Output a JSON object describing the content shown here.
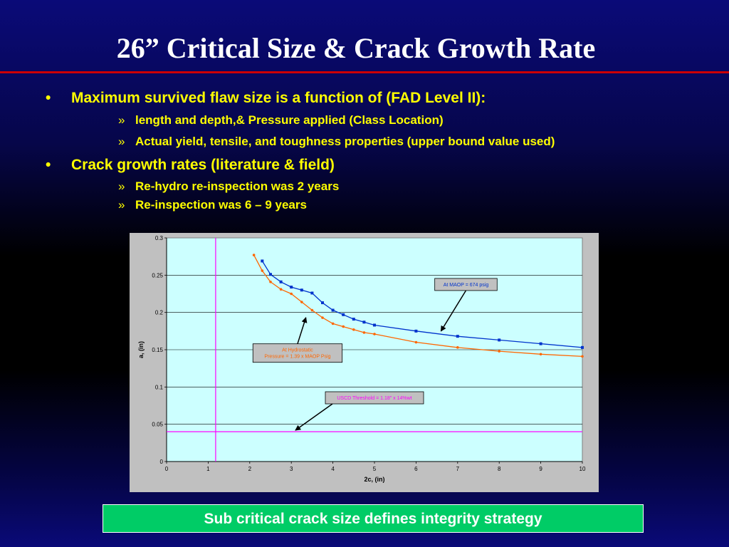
{
  "title": "26” Critical Size & Crack Growth Rate",
  "bullets": [
    {
      "text": "Maximum survived flaw size is a function of  (FAD Level II):",
      "sub": [
        "length and depth,& Pressure applied (Class Location)",
        "Actual yield, tensile, and toughness properties (upper bound value used)"
      ]
    },
    {
      "text": "Crack growth rates (literature & field)",
      "sub": [
        "Re-hydro re-inspection was 2 years",
        "Re-inspection was 6 – 9 years"
      ]
    }
  ],
  "bullet_marker": "•",
  "sub_marker": "»",
  "banner": "Sub critical crack size defines integrity strategy",
  "colors": {
    "title": "#ffffff",
    "bullets": "#ffff00",
    "title_rule": "#cc0000",
    "banner_bg": "#00cc66",
    "plot_bg": "#ccffff",
    "maop_series": "#0033cc",
    "hydro_series": "#ff6600",
    "threshold_line": "#ff00ff"
  },
  "chart_data": {
    "type": "line",
    "xlabel": "2c, (in)",
    "ylabel": "a, (in)",
    "xlim": [
      0,
      10
    ],
    "ylim": [
      0,
      0.3
    ],
    "x_ticks": [
      "0",
      "1",
      "2",
      "3",
      "4",
      "5",
      "6",
      "7",
      "8",
      "9",
      "10"
    ],
    "y_ticks": [
      "0",
      "0.05",
      "0.1",
      "0.15",
      "0.2",
      "0.25",
      "0.3"
    ],
    "grid": true,
    "series": [
      {
        "key": "maop",
        "color": "#0033cc",
        "marker": "square",
        "points": [
          [
            2.3,
            0.269
          ],
          [
            2.5,
            0.251
          ],
          [
            2.75,
            0.241
          ],
          [
            3.0,
            0.234
          ],
          [
            3.25,
            0.23
          ],
          [
            3.5,
            0.226
          ],
          [
            3.75,
            0.213
          ],
          [
            4.0,
            0.203
          ],
          [
            4.25,
            0.197
          ],
          [
            4.5,
            0.191
          ],
          [
            4.75,
            0.187
          ],
          [
            5.0,
            0.183
          ],
          [
            6.0,
            0.175
          ],
          [
            7.0,
            0.168
          ],
          [
            8.0,
            0.163
          ],
          [
            9.0,
            0.158
          ],
          [
            10.0,
            0.153
          ]
        ]
      },
      {
        "key": "hydro",
        "color": "#ff6600",
        "marker": "dot",
        "points": [
          [
            2.1,
            0.277
          ],
          [
            2.3,
            0.256
          ],
          [
            2.5,
            0.241
          ],
          [
            2.75,
            0.231
          ],
          [
            3.0,
            0.225
          ],
          [
            3.25,
            0.214
          ],
          [
            3.5,
            0.203
          ],
          [
            3.75,
            0.193
          ],
          [
            4.0,
            0.185
          ],
          [
            4.25,
            0.181
          ],
          [
            4.5,
            0.177
          ],
          [
            4.75,
            0.173
          ],
          [
            5.0,
            0.171
          ],
          [
            6.0,
            0.16
          ],
          [
            7.0,
            0.153
          ],
          [
            8.0,
            0.148
          ],
          [
            9.0,
            0.144
          ],
          [
            10.0,
            0.141
          ]
        ]
      }
    ],
    "threshold": {
      "y": 0.04,
      "x": 1.18,
      "color": "#ff00ff"
    },
    "annotations": [
      {
        "key": "maop",
        "lines": [
          "At MAOP = 674 psig"
        ],
        "text_color": "#0033cc",
        "box": [
          7.2,
          0.2375
        ],
        "arrow_to": [
          6.6,
          0.175
        ]
      },
      {
        "key": "hydro",
        "lines": [
          "At Hydrostatic",
          "Pressure = 1.39 x MAOP Psig"
        ],
        "text_color": "#ff6600",
        "box": [
          3.15,
          0.1455
        ],
        "arrow_to": [
          3.35,
          0.193
        ]
      },
      {
        "key": "threshold",
        "lines": [
          "USCD Threshold = 1.18\" x 14%wt"
        ],
        "text_color": "#ff00ff",
        "box": [
          5.0,
          0.0855
        ],
        "arrow_to": [
          3.1,
          0.042
        ]
      }
    ]
  }
}
